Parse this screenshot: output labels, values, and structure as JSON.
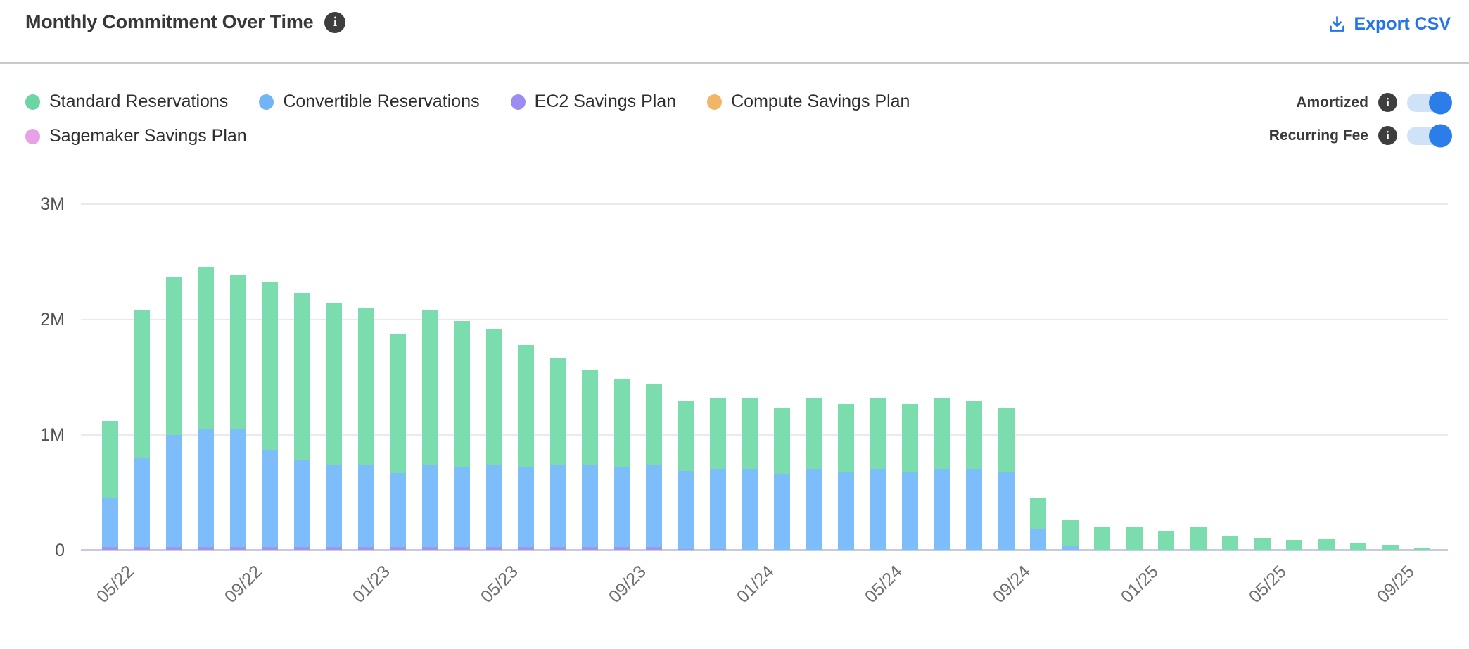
{
  "header": {
    "title": "Monthly Commitment Over Time",
    "title_info_icon": "i",
    "export_label": "Export CSV"
  },
  "legend": [
    {
      "label": "Standard Reservations",
      "color": "#6cd5a3"
    },
    {
      "label": "Convertible Reservations",
      "color": "#72b5f6"
    },
    {
      "label": "EC2 Savings Plan",
      "color": "#9b8cf2"
    },
    {
      "label": "Compute Savings Plan",
      "color": "#f1b566"
    },
    {
      "label": "Sagemaker Savings Plan",
      "color": "#e7a1e6"
    }
  ],
  "toggles": [
    {
      "label": "Amortized",
      "info_icon": "i",
      "state": "on"
    },
    {
      "label": "Recurring Fee",
      "info_icon": "i",
      "state": "on"
    }
  ],
  "accent_colors": {
    "link_blue": "#2374e8",
    "toggle_on": "#2b7de9",
    "toggle_track": "#cfe2f8"
  },
  "chart_data": {
    "type": "bar",
    "stacked": true,
    "title": "Monthly Commitment Over Time",
    "value_unit": "millions",
    "ylim": [
      0,
      3
    ],
    "y_ticks": [
      "0",
      "1M",
      "2M",
      "3M"
    ],
    "x_tick_every": 4,
    "x_tick_labels": [
      "05/22",
      "09/22",
      "01/23",
      "05/23",
      "09/23",
      "01/24",
      "05/24",
      "09/24",
      "01/25",
      "05/25",
      "09/25"
    ],
    "grid": true,
    "legend_position": "top-left",
    "categories": [
      "05/22",
      "06/22",
      "07/22",
      "08/22",
      "09/22",
      "10/22",
      "11/22",
      "12/22",
      "01/23",
      "02/23",
      "03/23",
      "04/23",
      "05/23",
      "06/23",
      "07/23",
      "08/23",
      "09/23",
      "10/23",
      "11/23",
      "12/23",
      "01/24",
      "02/24",
      "03/24",
      "04/24",
      "05/24",
      "06/24",
      "07/24",
      "08/24",
      "09/24",
      "10/24",
      "11/24",
      "12/24",
      "01/25",
      "02/25",
      "03/25",
      "04/25",
      "05/25",
      "06/25",
      "07/25",
      "08/25",
      "09/25",
      "10/25"
    ],
    "stack_bottom_to_top": [
      "EC2 Savings Plan",
      "Convertible Reservations",
      "Standard Reservations",
      "Compute Savings Plan",
      "Sagemaker Savings Plan"
    ],
    "series": [
      {
        "name": "Standard Reservations",
        "color": "#7bdcae",
        "values": [
          0.67,
          1.28,
          1.37,
          1.4,
          1.34,
          1.46,
          1.45,
          1.4,
          1.36,
          1.21,
          1.34,
          1.27,
          1.18,
          1.06,
          0.93,
          0.82,
          0.77,
          0.7,
          0.61,
          0.61,
          0.61,
          0.57,
          0.61,
          0.59,
          0.61,
          0.59,
          0.61,
          0.59,
          0.56,
          0.27,
          0.22,
          0.2,
          0.2,
          0.17,
          0.2,
          0.12,
          0.11,
          0.09,
          0.1,
          0.07,
          0.05,
          0.02
        ]
      },
      {
        "name": "Convertible Reservations",
        "color": "#7cbdfa",
        "values": [
          0.42,
          0.77,
          0.97,
          1.02,
          1.02,
          0.84,
          0.75,
          0.71,
          0.71,
          0.64,
          0.71,
          0.69,
          0.71,
          0.69,
          0.71,
          0.71,
          0.69,
          0.71,
          0.68,
          0.7,
          0.71,
          0.66,
          0.71,
          0.68,
          0.71,
          0.68,
          0.71,
          0.71,
          0.68,
          0.19,
          0.04,
          0,
          0,
          0,
          0,
          0,
          0,
          0,
          0,
          0,
          0,
          0
        ]
      },
      {
        "name": "EC2 Savings Plan",
        "color": "#a495ec",
        "values": [
          0.03,
          0.03,
          0.03,
          0.03,
          0.03,
          0.03,
          0.03,
          0.03,
          0.03,
          0.03,
          0.03,
          0.03,
          0.03,
          0.03,
          0.03,
          0.03,
          0.03,
          0.03,
          0.01,
          0.01,
          0,
          0,
          0,
          0,
          0,
          0,
          0,
          0,
          0,
          0,
          0,
          0,
          0,
          0,
          0,
          0,
          0,
          0,
          0,
          0,
          0,
          0
        ]
      },
      {
        "name": "Compute Savings Plan",
        "color": "#f1b566",
        "values": [
          0,
          0,
          0,
          0,
          0,
          0,
          0,
          0,
          0,
          0,
          0,
          0,
          0,
          0,
          0,
          0,
          0,
          0,
          0,
          0,
          0,
          0,
          0,
          0,
          0,
          0,
          0,
          0,
          0,
          0,
          0,
          0,
          0,
          0,
          0,
          0,
          0,
          0,
          0,
          0,
          0,
          0
        ]
      },
      {
        "name": "Sagemaker Savings Plan",
        "color": "#e7a1e6",
        "values": [
          0,
          0,
          0,
          0,
          0,
          0,
          0,
          0,
          0,
          0,
          0,
          0,
          0,
          0,
          0,
          0,
          0,
          0,
          0,
          0,
          0,
          0,
          0,
          0,
          0,
          0,
          0,
          0,
          0,
          0,
          0,
          0,
          0,
          0,
          0,
          0,
          0,
          0,
          0,
          0,
          0,
          0
        ]
      }
    ]
  }
}
